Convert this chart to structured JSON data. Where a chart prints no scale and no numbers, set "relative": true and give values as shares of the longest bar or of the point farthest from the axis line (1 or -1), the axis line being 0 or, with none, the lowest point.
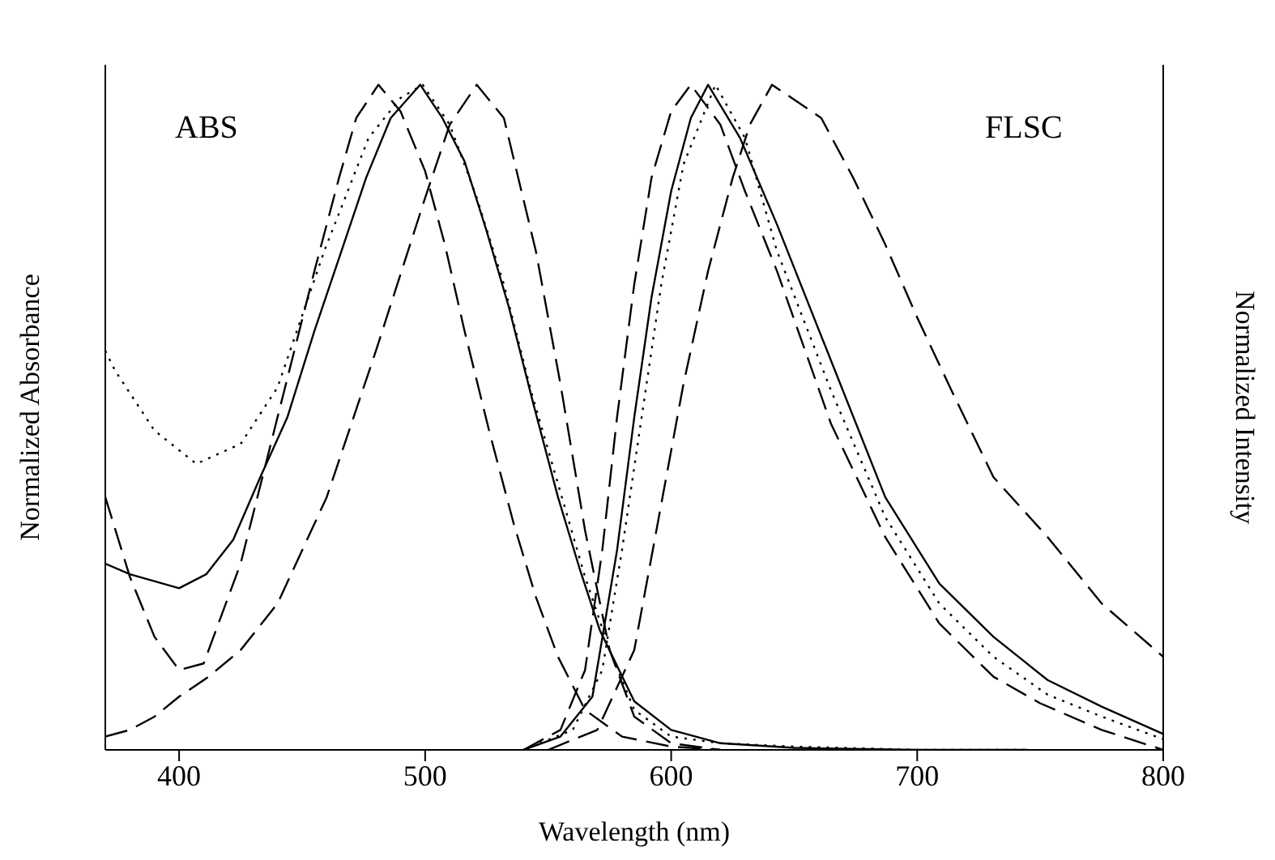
{
  "chart_data": {
    "type": "line",
    "relative": true,
    "xlabel": "Wavelength (nm)",
    "ylabel": "Normalized Absorbance",
    "y2label": "Normalized Intensity",
    "xlim": [
      370,
      800
    ],
    "xticks": [
      400,
      500,
      600,
      700,
      800
    ],
    "marker": "none",
    "annotations": [
      "ABS",
      "FLSC"
    ],
    "series": [
      {
        "color": "#000000",
        "line_style": "dotted",
        "x": [
          370,
          374,
          390,
          407,
          425,
          440,
          459,
          477,
          490,
          499,
          510,
          521,
          532,
          543,
          554,
          565,
          575,
          585,
          600,
          620,
          650,
          700,
          745
        ],
        "values": [
          0.6,
          0.57,
          0.48,
          0.43,
          0.46,
          0.545,
          0.75,
          0.92,
          0.98,
          1.0,
          0.94,
          0.83,
          0.7,
          0.54,
          0.4,
          0.26,
          0.15,
          0.06,
          0.02,
          0.01,
          0.005,
          0,
          0
        ]
      },
      {
        "color": "#000000",
        "line_style": "solid",
        "x": [
          370,
          380,
          400,
          411,
          422,
          433,
          444,
          455,
          466,
          476,
          486,
          498,
          507,
          516,
          525,
          534,
          544,
          554,
          563,
          571,
          585,
          600,
          620,
          650,
          700,
          745
        ],
        "values": [
          0.28,
          0.264,
          0.243,
          0.264,
          0.316,
          0.41,
          0.5,
          0.63,
          0.75,
          0.86,
          0.95,
          1.0,
          0.95,
          0.885,
          0.78,
          0.666,
          0.52,
          0.38,
          0.27,
          0.18,
          0.073,
          0.03,
          0.01,
          0.003,
          0,
          0
        ]
      },
      {
        "color": "#000000",
        "line_style": "dashed",
        "x": [
          370,
          380,
          390,
          400,
          410,
          425,
          440,
          455,
          465,
          472,
          481,
          490,
          500,
          508,
          516,
          526,
          536,
          545,
          554,
          565,
          580,
          600,
          620
        ],
        "values": [
          0.38,
          0.26,
          0.17,
          0.12,
          0.13,
          0.28,
          0.5,
          0.72,
          0.86,
          0.95,
          1.0,
          0.96,
          0.87,
          0.76,
          0.63,
          0.48,
          0.34,
          0.23,
          0.14,
          0.06,
          0.02,
          0.005,
          0
        ]
      },
      {
        "color": "#000000",
        "line_style": "dashed",
        "x": [
          370,
          380,
          390,
          400,
          412,
          425,
          440,
          460,
          480,
          500,
          510,
          521,
          532,
          545,
          555,
          565,
          575,
          585,
          600,
          620
        ],
        "values": [
          0.02,
          0.03,
          0.05,
          0.08,
          0.11,
          0.15,
          0.22,
          0.38,
          0.6,
          0.83,
          0.94,
          1.0,
          0.95,
          0.75,
          0.55,
          0.33,
          0.15,
          0.05,
          0.01,
          0
        ]
      },
      {
        "color": "#000000",
        "line_style": "dashed",
        "x": [
          540,
          555,
          565,
          572,
          578,
          585,
          592,
          600,
          608,
          620,
          630,
          643,
          665,
          687,
          709,
          731,
          750,
          775,
          800
        ],
        "values": [
          0,
          0.03,
          0.12,
          0.3,
          0.5,
          0.7,
          0.86,
          0.96,
          1.0,
          0.94,
          0.84,
          0.72,
          0.49,
          0.32,
          0.19,
          0.11,
          0.07,
          0.03,
          0
        ]
      },
      {
        "color": "#000000",
        "line_style": "solid",
        "x": [
          540,
          555,
          568,
          578,
          585,
          592,
          600,
          608,
          615,
          628,
          643,
          665,
          687,
          709,
          731,
          753,
          775,
          800
        ],
        "values": [
          0,
          0.02,
          0.08,
          0.3,
          0.5,
          0.68,
          0.84,
          0.95,
          1.0,
          0.92,
          0.79,
          0.585,
          0.38,
          0.25,
          0.17,
          0.105,
          0.065,
          0.024
        ]
      },
      {
        "color": "#000000",
        "line_style": "dotted",
        "x": [
          540,
          560,
          572,
          580,
          588,
          596,
          605,
          618,
          630,
          643,
          665,
          687,
          709,
          731,
          753,
          775,
          800
        ],
        "values": [
          0,
          0.03,
          0.12,
          0.3,
          0.5,
          0.7,
          0.88,
          1.0,
          0.92,
          0.75,
          0.54,
          0.35,
          0.22,
          0.14,
          0.083,
          0.05,
          0.016
        ]
      },
      {
        "color": "#000000",
        "line_style": "dashed",
        "x": [
          550,
          570,
          585,
          595,
          605,
          615,
          625,
          632,
          641,
          661,
          674,
          687,
          700,
          714,
          731,
          753,
          775,
          800
        ],
        "values": [
          0,
          0.03,
          0.15,
          0.35,
          0.55,
          0.72,
          0.86,
          0.94,
          1.0,
          0.95,
          0.86,
          0.76,
          0.65,
          0.54,
          0.41,
          0.32,
          0.22,
          0.14
        ]
      }
    ]
  }
}
